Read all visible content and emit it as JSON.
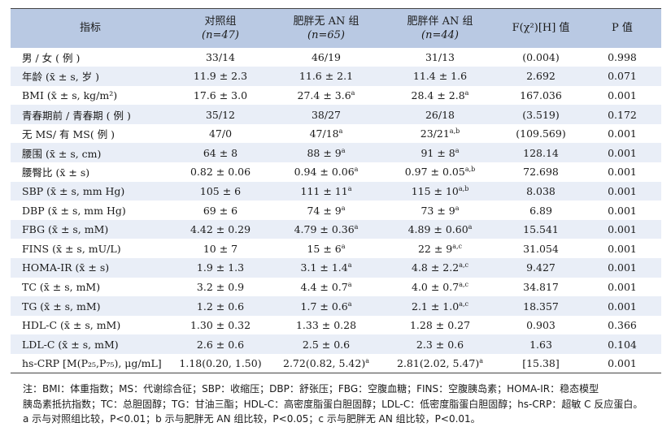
{
  "headers": {
    "indicator": "指标",
    "control": "对照组",
    "control_n": "(n=47)",
    "obese_no_an": "肥胖无 AN 组",
    "obese_no_an_n": "(n=65)",
    "obese_an": "肥胖伴 AN 组",
    "obese_an_n": "(n=44)",
    "stat": "F(χ²)[H] 值",
    "p": "P 值"
  },
  "rows": [
    {
      "label": "男 / 女 ( 例 )",
      "c1": "33/14",
      "c1s": "",
      "c2": "46/19",
      "c2s": "",
      "c3": "31/13",
      "c3s": "",
      "stat": "(0.004)",
      "p": "0.998"
    },
    {
      "label": "年龄 (x̄ ± s, 岁 )",
      "c1": "11.9 ± 2.3",
      "c1s": "",
      "c2": "11.6 ± 2.1",
      "c2s": "",
      "c3": "11.4 ± 1.6",
      "c3s": "",
      "stat": "2.692",
      "p": "0.071"
    },
    {
      "label": "BMI (x̄ ± s, kg/m²)",
      "c1": "17.6 ± 3.0",
      "c1s": "",
      "c2": "27.4 ± 3.6",
      "c2s": "a",
      "c3": "28.4 ± 2.8",
      "c3s": "a",
      "stat": "167.036",
      "p": "0.001"
    },
    {
      "label": "青春期前 / 青春期 ( 例 )",
      "c1": "35/12",
      "c1s": "",
      "c2": "38/27",
      "c2s": "",
      "c3": "26/18",
      "c3s": "",
      "stat": "(3.519)",
      "p": "0.172"
    },
    {
      "label": "无 MS/ 有 MS( 例 )",
      "c1": "47/0",
      "c1s": "",
      "c2": "47/18",
      "c2s": "a",
      "c3": "23/21",
      "c3s": "a,b",
      "stat": "(109.569)",
      "p": "0.001"
    },
    {
      "label": "腰围 (x̄ ± s, cm)",
      "c1": "64 ± 8",
      "c1s": "",
      "c2": "88 ± 9",
      "c2s": "a",
      "c3": "91 ± 8",
      "c3s": "a",
      "stat": "128.14",
      "p": "0.001"
    },
    {
      "label": "腰臀比 (x̄ ± s)",
      "c1": "0.82 ± 0.06",
      "c1s": "",
      "c2": "0.94 ± 0.06",
      "c2s": "a",
      "c3": "0.97 ± 0.05",
      "c3s": "a,b",
      "stat": "72.698",
      "p": "0.001"
    },
    {
      "label": "SBP (x̄ ± s, mm Hg)",
      "c1": "105 ± 6",
      "c1s": "",
      "c2": "111 ± 11",
      "c2s": "a",
      "c3": "115 ± 10",
      "c3s": "a,b",
      "stat": "8.038",
      "p": "0.001"
    },
    {
      "label": "DBP (x̄ ± s, mm Hg)",
      "c1": "69 ± 6",
      "c1s": "",
      "c2": "74 ± 9",
      "c2s": "a",
      "c3": "73 ± 9",
      "c3s": "a",
      "stat": "6.89",
      "p": "0.001"
    },
    {
      "label": "FBG (x̄ ± s, mM)",
      "c1": "4.42 ± 0.29",
      "c1s": "",
      "c2": "4.79 ± 0.36",
      "c2s": "a",
      "c3": "4.89 ± 0.60",
      "c3s": "a",
      "stat": "15.541",
      "p": "0.001"
    },
    {
      "label": "FINS (x̄ ± s, mU/L)",
      "c1": "10 ± 7",
      "c1s": "",
      "c2": "15 ± 6",
      "c2s": "a",
      "c3": "22 ± 9",
      "c3s": "a,c",
      "stat": "31.054",
      "p": "0.001"
    },
    {
      "label": "HOMA-IR (x̄ ± s)",
      "c1": "1.9 ± 1.3",
      "c1s": "",
      "c2": "3.1 ± 1.4",
      "c2s": "a",
      "c3": "4.8 ± 2.2",
      "c3s": "a,c",
      "stat": "9.427",
      "p": "0.001"
    },
    {
      "label": "TC (x̄ ± s, mM)",
      "c1": "3.2 ± 0.9",
      "c1s": "",
      "c2": "4.4 ± 0.7",
      "c2s": "a",
      "c3": "4.0 ± 0.7",
      "c3s": "a,c",
      "stat": "34.817",
      "p": "0.001"
    },
    {
      "label": "TG (x̄ ± s, mM)",
      "c1": "1.2 ± 0.6",
      "c1s": "",
      "c2": "1.7 ± 0.6",
      "c2s": "a",
      "c3": "2.1 ± 1.0",
      "c3s": "a,c",
      "stat": "18.357",
      "p": "0.001"
    },
    {
      "label": "HDL-C (x̄ ± s, mM)",
      "c1": "1.30 ± 0.32",
      "c1s": "",
      "c2": "1.33 ± 0.28",
      "c2s": "",
      "c3": "1.28 ± 0.27",
      "c3s": "",
      "stat": "0.903",
      "p": "0.366"
    },
    {
      "label": "LDL-C (x̄ ± s, mM)",
      "c1": "2.6 ± 0.6",
      "c1s": "",
      "c2": "2.5 ± 0.6",
      "c2s": "",
      "c3": "2.3 ± 0.6",
      "c3s": "",
      "stat": "1.63",
      "p": "0.104"
    },
    {
      "label": "hs-CRP [M(P₂₅,P₇₅), μg/mL]",
      "c1": "1.18(0.20, 1.50)",
      "c1s": "",
      "c2": "2.72(0.82, 5.42)",
      "c2s": "a",
      "c3": "2.81(2.02, 5.47)",
      "c3s": "a",
      "stat": "[15.38]",
      "p": "0.001"
    }
  ],
  "note": {
    "line1": "注：BMI：体重指数；MS：代谢综合征；SBP：收缩压；DBP：舒张压；FBG：空腹血糖；FINS：空腹胰岛素；HOMA-IR：稳态模型",
    "line2": "胰岛素抵抗指数；TC：总胆固醇；TG：甘油三酯；HDL-C：高密度脂蛋白胆固醇；LDL-C：低密度脂蛋白胆固醇；hs-CRP：超敏 C 反应蛋白。",
    "line3": "a 示与对照组比较，P<0.01；b 示与肥胖无 AN 组比较，P<0.05；c 示与肥胖无 AN 组比较，P<0.01。"
  }
}
